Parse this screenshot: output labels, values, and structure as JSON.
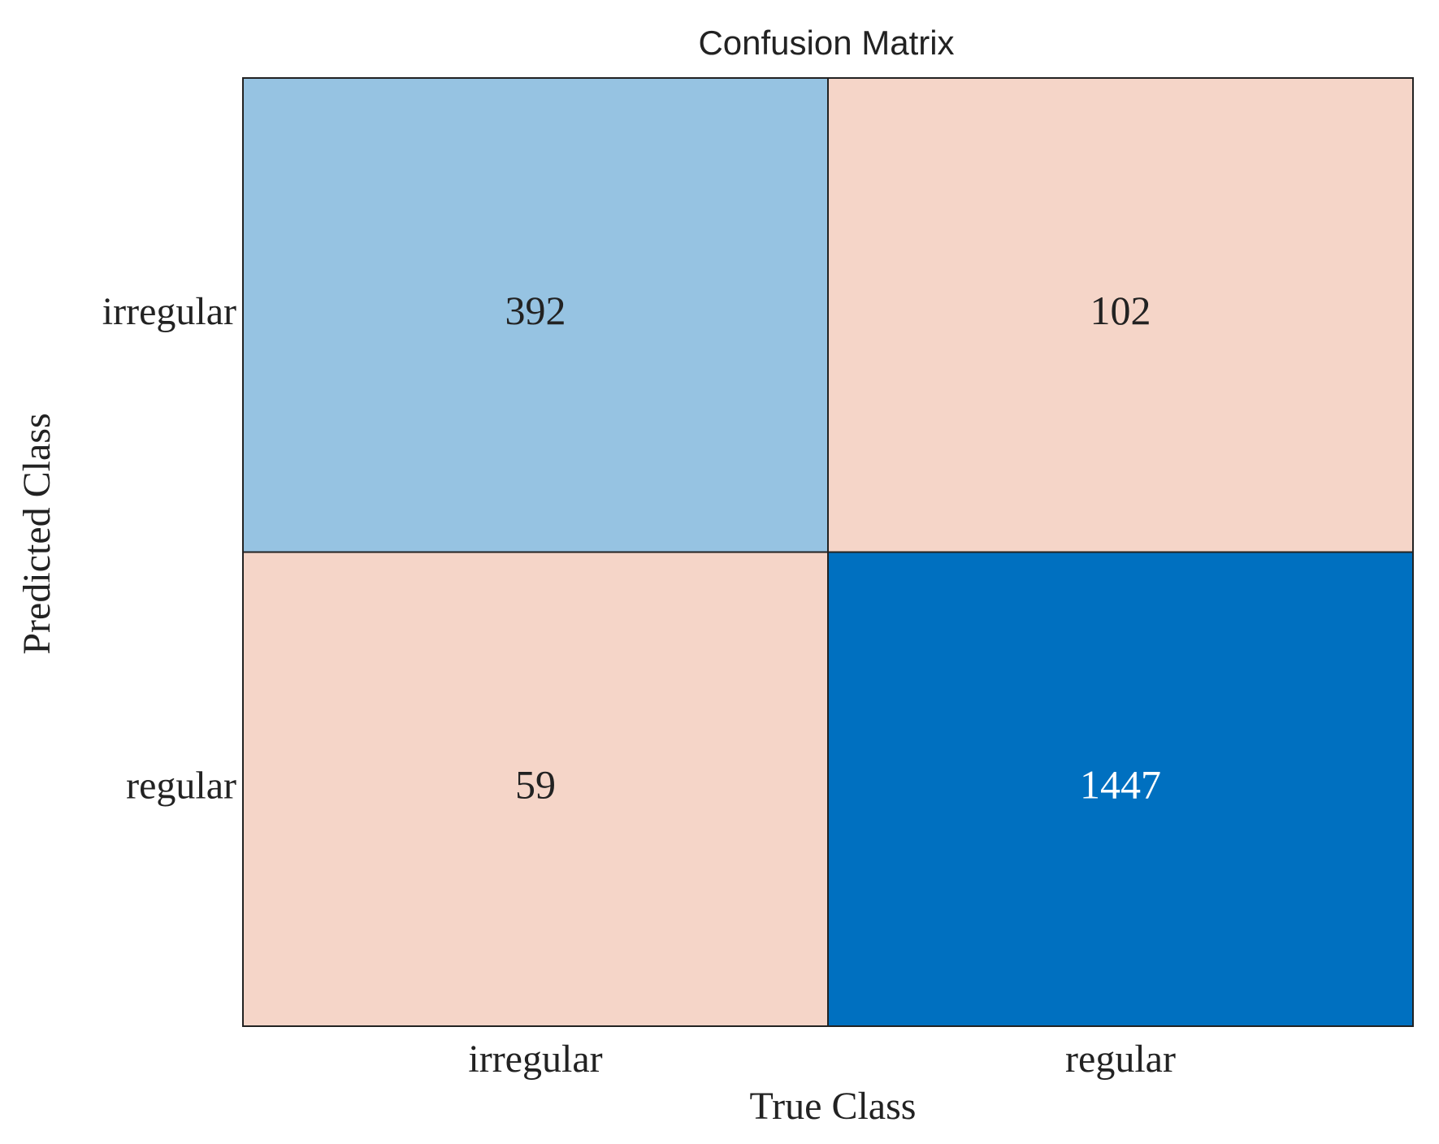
{
  "chart_data": {
    "type": "confusion_matrix",
    "title": "Confusion Matrix",
    "x_label": "True Class",
    "y_label": "Predicted Class",
    "x_categories": [
      "irregular",
      "regular"
    ],
    "y_categories": [
      "irregular",
      "regular"
    ],
    "values": [
      [
        392,
        102
      ],
      [
        59,
        1447
      ]
    ],
    "colors": [
      [
        "#96c3e2",
        "#f5d5c8"
      ],
      [
        "#f5d5c8",
        "#0070c0"
      ]
    ]
  }
}
